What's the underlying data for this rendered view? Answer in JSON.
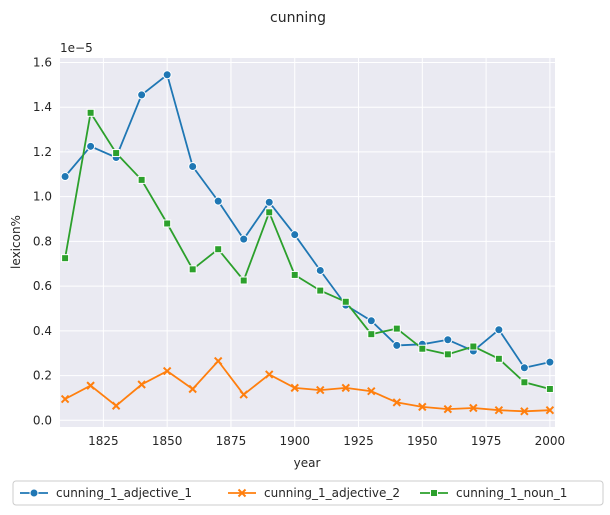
{
  "chart_data": {
    "type": "line",
    "title": "cunning",
    "xlabel": "year",
    "ylabel": "lexicon%",
    "y_offset_label": "1e−5",
    "xlim": [
      1808,
      2002
    ],
    "ylim": [
      -0.3,
      16.2
    ],
    "x_ticks": [
      1825,
      1850,
      1875,
      1900,
      1925,
      1950,
      1975,
      2000
    ],
    "x_tick_labels": [
      "1825",
      "1850",
      "1875",
      "1900",
      "1925",
      "1950",
      "1975",
      "2000"
    ],
    "y_ticks": [
      0,
      2,
      4,
      6,
      8,
      10,
      12,
      14,
      16
    ],
    "y_tick_labels": [
      "0.0",
      "0.2",
      "0.4",
      "0.6",
      "0.8",
      "1.0",
      "1.2",
      "1.4",
      "1.6"
    ],
    "grid": true,
    "legend_position": "bottom",
    "x": [
      1810,
      1820,
      1830,
      1840,
      1850,
      1860,
      1870,
      1880,
      1890,
      1900,
      1910,
      1920,
      1930,
      1940,
      1950,
      1960,
      1970,
      1980,
      1990,
      2000
    ],
    "series": [
      {
        "name": "cunning_1_adjective_1",
        "color": "#1f77b4",
        "marker": "circle",
        "values": [
          10.9,
          12.25,
          11.75,
          14.55,
          15.45,
          11.35,
          9.8,
          8.1,
          9.75,
          8.3,
          6.7,
          5.15,
          4.45,
          3.35,
          3.4,
          3.6,
          3.1,
          4.05,
          2.35,
          2.6
        ]
      },
      {
        "name": "cunning_1_adjective_2",
        "color": "#ff7f0e",
        "marker": "x",
        "values": [
          0.95,
          1.55,
          0.65,
          1.6,
          2.2,
          1.4,
          2.65,
          1.15,
          2.05,
          1.45,
          1.35,
          1.45,
          1.3,
          0.8,
          0.6,
          0.5,
          0.55,
          0.45,
          0.4,
          0.45
        ]
      },
      {
        "name": "cunning_1_noun_1",
        "color": "#2ca02c",
        "marker": "square",
        "values": [
          7.25,
          13.75,
          11.95,
          10.75,
          8.8,
          6.75,
          7.65,
          6.25,
          9.3,
          6.5,
          5.8,
          5.3,
          3.85,
          4.1,
          3.2,
          2.95,
          3.3,
          2.75,
          1.7,
          1.4
        ]
      }
    ]
  }
}
